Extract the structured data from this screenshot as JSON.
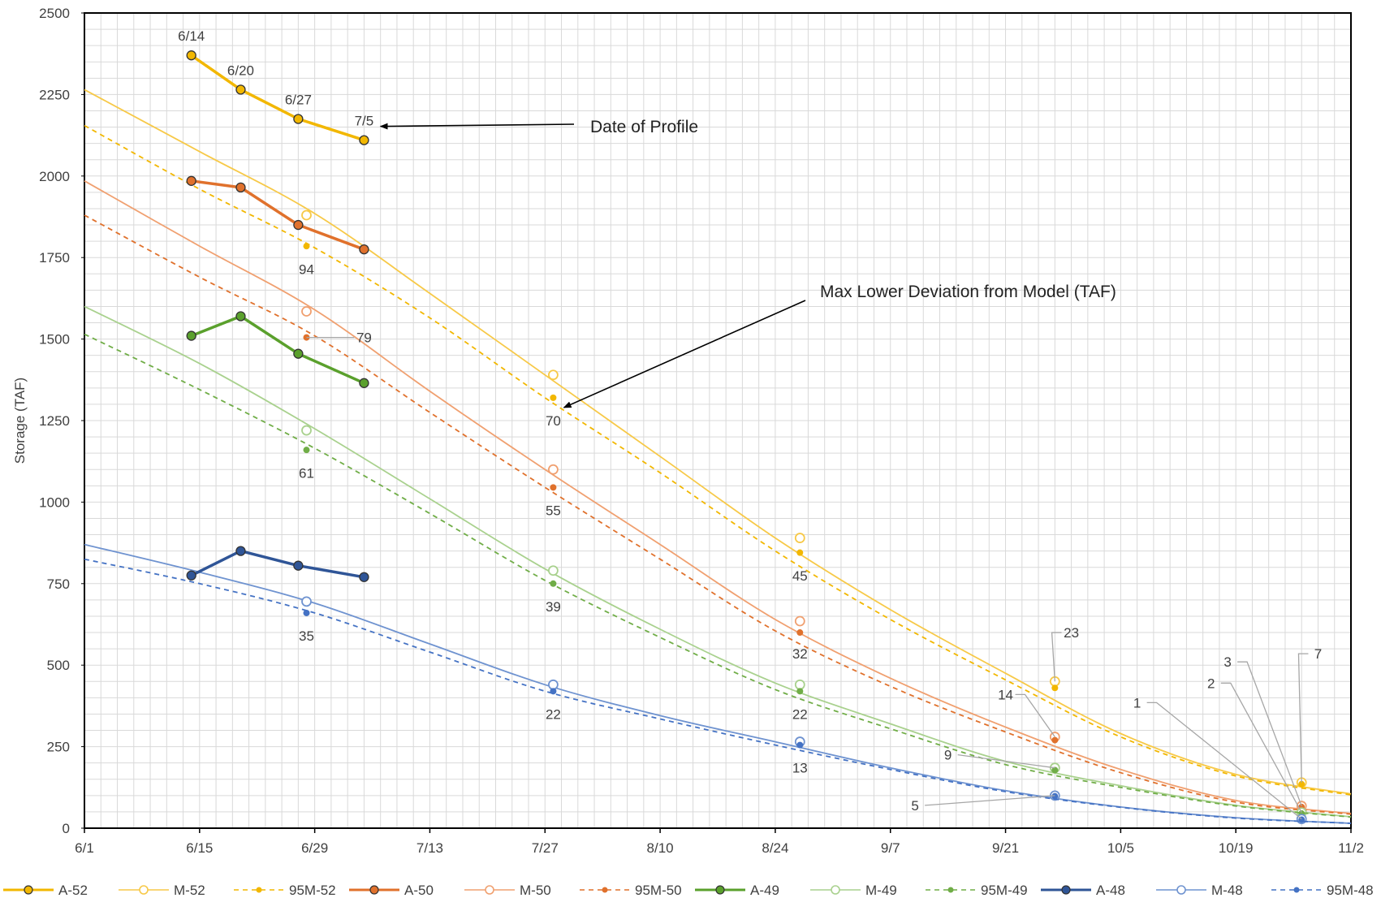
{
  "chart_data": {
    "type": "line",
    "title": "",
    "xlabel": "",
    "ylabel": "Storage (TAF)",
    "xlim": [
      "6/1",
      "11/2"
    ],
    "ylim": [
      0,
      2500
    ],
    "x_ticks": [
      "6/1",
      "6/15",
      "6/29",
      "7/13",
      "7/27",
      "8/10",
      "8/24",
      "9/7",
      "9/21",
      "10/5",
      "10/19",
      "11/2"
    ],
    "y_ticks": [
      0,
      250,
      500,
      750,
      1000,
      1250,
      1500,
      1750,
      2000,
      2250,
      2500
    ],
    "grid": "minor gridlines every 2 days and 50 TAF",
    "legend_position": "bottom",
    "series": [
      {
        "name": "A-52",
        "color": "#F2B700",
        "style": "actual",
        "x": [
          "6/14",
          "6/20",
          "6/27",
          "7/5"
        ],
        "y": [
          2370,
          2265,
          2175,
          2110
        ]
      },
      {
        "name": "M-52",
        "color": "#F7C948",
        "style": "model",
        "curve_x": [
          "6/1",
          "6/15",
          "6/29",
          "7/13",
          "7/27",
          "8/10",
          "8/24",
          "9/7",
          "9/21",
          "10/5",
          "10/19",
          "11/2"
        ],
        "curve_y": [
          2265,
          2075,
          1885,
          1640,
          1390,
          1140,
          890,
          670,
          475,
          290,
          165,
          105
        ],
        "marker_x": [
          "6/28",
          "7/28",
          "8/27",
          "9/27",
          "10/27"
        ],
        "marker_y": [
          1880,
          1390,
          890,
          450,
          140
        ]
      },
      {
        "name": "95M-52",
        "color": "#F2B700",
        "style": "dashed",
        "curve_x": [
          "6/1",
          "6/15",
          "6/29",
          "7/13",
          "7/27",
          "8/10",
          "8/24",
          "9/7",
          "9/21",
          "10/5",
          "10/19",
          "11/2"
        ],
        "curve_y": [
          2155,
          1960,
          1780,
          1565,
          1320,
          1090,
          850,
          640,
          455,
          280,
          160,
          102
        ],
        "marker_x": [
          "6/28",
          "7/28",
          "8/27",
          "9/27",
          "10/27"
        ],
        "marker_y": [
          1785,
          1320,
          845,
          430,
          135
        ]
      },
      {
        "name": "A-50",
        "color": "#E0712C",
        "style": "actual",
        "x": [
          "6/14",
          "6/20",
          "6/27",
          "7/5"
        ],
        "y": [
          1985,
          1965,
          1850,
          1775
        ]
      },
      {
        "name": "M-50",
        "color": "#F0A070",
        "style": "model",
        "curve_x": [
          "6/1",
          "6/15",
          "6/29",
          "7/13",
          "7/27",
          "8/10",
          "8/24",
          "9/7",
          "9/21",
          "10/5",
          "10/19",
          "11/2"
        ],
        "curve_y": [
          1985,
          1785,
          1590,
          1340,
          1100,
          870,
          640,
          460,
          310,
          180,
          85,
          45
        ],
        "marker_x": [
          "6/28",
          "7/28",
          "8/27",
          "9/27",
          "10/27"
        ],
        "marker_y": [
          1585,
          1100,
          635,
          280,
          68
        ]
      },
      {
        "name": "95M-50",
        "color": "#E0712C",
        "style": "dashed",
        "curve_x": [
          "6/1",
          "6/15",
          "6/29",
          "7/13",
          "7/27",
          "8/10",
          "8/24",
          "9/7",
          "9/21",
          "10/5",
          "10/19",
          "11/2"
        ],
        "curve_y": [
          1880,
          1690,
          1510,
          1275,
          1045,
          825,
          605,
          435,
          295,
          170,
          80,
          43
        ],
        "marker_x": [
          "6/28",
          "7/28",
          "8/27",
          "9/27",
          "10/27"
        ],
        "marker_y": [
          1505,
          1045,
          600,
          270,
          65
        ]
      },
      {
        "name": "A-49",
        "color": "#5AA02C",
        "style": "actual",
        "x": [
          "6/14",
          "6/20",
          "6/27",
          "7/5"
        ],
        "y": [
          1510,
          1570,
          1455,
          1365
        ]
      },
      {
        "name": "M-49",
        "color": "#A9D18E",
        "style": "model",
        "curve_x": [
          "6/1",
          "6/15",
          "6/29",
          "7/13",
          "7/27",
          "8/10",
          "8/24",
          "9/7",
          "9/21",
          "10/5",
          "10/19",
          "11/2"
        ],
        "curve_y": [
          1600,
          1425,
          1225,
          1010,
          795,
          610,
          445,
          320,
          205,
          130,
          70,
          35
        ],
        "marker_x": [
          "6/28",
          "7/28",
          "8/27",
          "9/27",
          "10/27"
        ],
        "marker_y": [
          1220,
          790,
          440,
          185,
          48
        ]
      },
      {
        "name": "95M-49",
        "color": "#70AD47",
        "style": "dashed",
        "curve_x": [
          "6/1",
          "6/15",
          "6/29",
          "7/13",
          "7/27",
          "8/10",
          "8/24",
          "9/7",
          "9/21",
          "10/5",
          "10/19",
          "11/2"
        ],
        "curve_y": [
          1515,
          1345,
          1165,
          965,
          760,
          585,
          425,
          305,
          195,
          125,
          68,
          34
        ],
        "marker_x": [
          "6/28",
          "7/28",
          "8/27",
          "9/27",
          "10/27"
        ],
        "marker_y": [
          1160,
          750,
          420,
          178,
          45
        ]
      },
      {
        "name": "A-48",
        "color": "#2F5597",
        "style": "actual",
        "x": [
          "6/14",
          "6/20",
          "6/27",
          "7/5"
        ],
        "y": [
          775,
          850,
          805,
          770
        ]
      },
      {
        "name": "M-48",
        "color": "#6F93D0",
        "style": "model",
        "curve_x": [
          "6/1",
          "6/15",
          "6/29",
          "7/13",
          "7/27",
          "8/10",
          "8/24",
          "9/7",
          "9/21",
          "10/5",
          "10/19",
          "11/2"
        ],
        "curve_y": [
          870,
          785,
          690,
          565,
          440,
          345,
          265,
          185,
          115,
          65,
          32,
          15
        ],
        "marker_x": [
          "6/28",
          "7/28",
          "8/27",
          "9/27",
          "10/27"
        ],
        "marker_y": [
          695,
          440,
          265,
          100,
          28
        ]
      },
      {
        "name": "95M-48",
        "color": "#4472C4",
        "style": "dashed",
        "curve_x": [
          "6/1",
          "6/15",
          "6/29",
          "7/13",
          "7/27",
          "8/10",
          "8/24",
          "9/7",
          "9/21",
          "10/5",
          "10/19",
          "11/2"
        ],
        "curve_y": [
          825,
          750,
          660,
          540,
          420,
          335,
          255,
          180,
          112,
          64,
          31,
          15
        ],
        "marker_x": [
          "6/28",
          "7/28",
          "8/27",
          "9/27",
          "10/27"
        ],
        "marker_y": [
          660,
          420,
          255,
          98,
          26
        ]
      }
    ],
    "profile_date_labels": [
      {
        "text": "6/14",
        "x": "6/14",
        "y": 2370
      },
      {
        "text": "6/20",
        "x": "6/20",
        "y": 2265
      },
      {
        "text": "6/27",
        "x": "6/27",
        "y": 2175
      },
      {
        "text": "7/5",
        "x": "7/5",
        "y": 2110
      }
    ],
    "deviation_labels": [
      {
        "text": "94",
        "x": "6/28",
        "y": 1715
      },
      {
        "text": "79",
        "x": "7/5",
        "y": 1505
      },
      {
        "text": "61",
        "x": "6/28",
        "y": 1090
      },
      {
        "text": "35",
        "x": "6/28",
        "y": 590
      },
      {
        "text": "70",
        "x": "7/28",
        "y": 1250
      },
      {
        "text": "55",
        "x": "7/28",
        "y": 975
      },
      {
        "text": "39",
        "x": "7/28",
        "y": 680
      },
      {
        "text": "22",
        "x": "7/28",
        "y": 350
      },
      {
        "text": "45",
        "x": "8/27",
        "y": 775
      },
      {
        "text": "32",
        "x": "8/27",
        "y": 535
      },
      {
        "text": "22",
        "x": "8/27",
        "y": 350
      },
      {
        "text": "13",
        "x": "8/27",
        "y": 185
      },
      {
        "text": "23",
        "x": "9/29",
        "y": 600
      },
      {
        "text": "14",
        "x": "9/21",
        "y": 410
      },
      {
        "text": "9",
        "x": "9/14",
        "y": 225
      },
      {
        "text": "5",
        "x": "9/10",
        "y": 70
      },
      {
        "text": "1",
        "x": "10/7",
        "y": 385
      },
      {
        "text": "2",
        "x": "10/16",
        "y": 445
      },
      {
        "text": "3",
        "x": "10/18",
        "y": 510
      },
      {
        "text": "7",
        "x": "10/29",
        "y": 535
      }
    ],
    "annotations": [
      {
        "text": "Date of Profile"
      },
      {
        "text": "Max Lower Deviation from Model (TAF)"
      }
    ]
  }
}
